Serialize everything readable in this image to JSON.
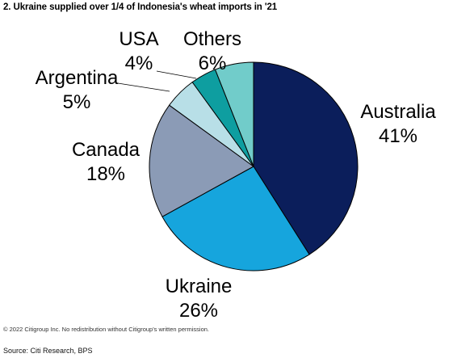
{
  "chart_data": {
    "type": "pie",
    "title": "2. Ukraine supplied over 1/4 of Indonesia's wheat imports in '21",
    "slices": [
      {
        "name": "Australia",
        "label": "41%",
        "value": 41,
        "color": "#0b1e5b"
      },
      {
        "name": "Ukraine",
        "label": "26%",
        "value": 26,
        "color": "#16a5dd"
      },
      {
        "name": "Canada",
        "label": "18%",
        "value": 18,
        "color": "#8b9bb6"
      },
      {
        "name": "Argentina",
        "label": "5%",
        "value": 5,
        "color": "#b8dfe7"
      },
      {
        "name": "USA",
        "label": "4%",
        "value": 4,
        "color": "#0e9ea0"
      },
      {
        "name": "Others",
        "label": "6%",
        "value": 6,
        "color": "#71ccca"
      }
    ]
  },
  "footer": {
    "copyright": "© 2022 Citigroup Inc. No redistribution without Citigroup's written permission.",
    "source": "Source: Citi Research, BPS"
  }
}
